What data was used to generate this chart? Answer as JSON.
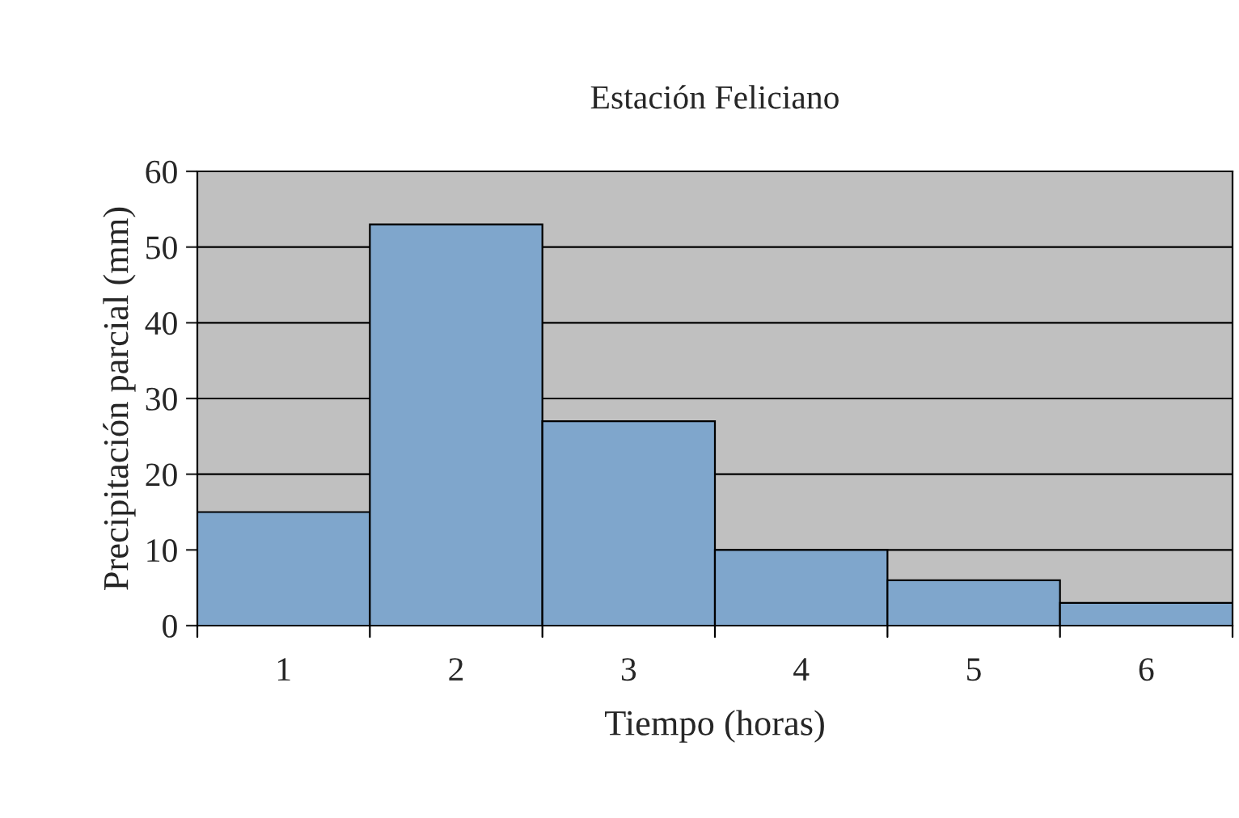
{
  "chart_data": {
    "type": "bar",
    "title": "Estación Feliciano",
    "xlabel": "Tiempo (horas)",
    "ylabel": "Precipitación parcial (mm)",
    "categories": [
      "1",
      "2",
      "3",
      "4",
      "5",
      "6"
    ],
    "values": [
      15,
      53,
      27,
      10,
      6,
      3
    ],
    "color": "#7fa6cc",
    "ylim": [
      0,
      60
    ],
    "yticks": [
      0,
      10,
      20,
      30,
      40,
      50,
      60
    ],
    "grid": "y"
  }
}
